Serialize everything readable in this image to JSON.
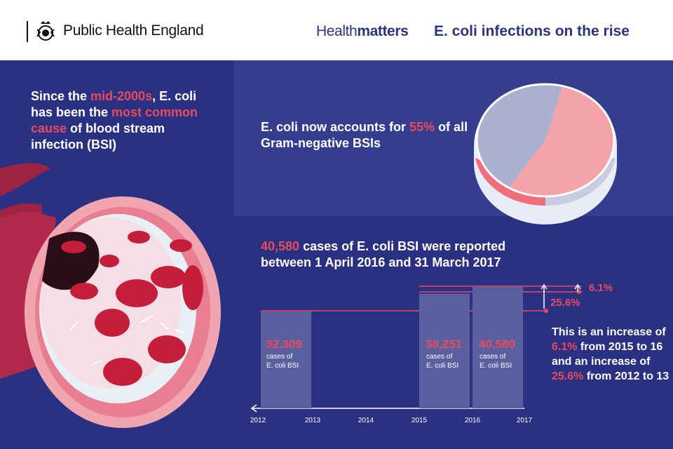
{
  "header": {
    "org_name": "Public Health England",
    "brand_light": "Health",
    "brand_bold": "matters",
    "title": "E. coli infections on the rise"
  },
  "left_panel": {
    "t1": "Since the ",
    "t2": "mid-2000s",
    "t3": ", E. coli has been the ",
    "t4": "most common cause",
    "t5": " of blood stream infection (BSI)"
  },
  "top_panel": {
    "t1": "E. coli now accounts for ",
    "t2": "55%",
    "t3": " of all Gram-negative BSIs"
  },
  "mid_panel": {
    "t1": "40,580",
    "t2": " cases of E. coli BSI were reported between 1 April 2016 and 31 March 2017"
  },
  "right_panel": {
    "t1": "This is an increase of ",
    "t2": "6.1%",
    "t3": " from 2015 to 16 and an increase of ",
    "t4": "25.6%",
    "t5": " from 2012 to 13"
  },
  "chart_data": [
    {
      "type": "pie",
      "slices": [
        {
          "label": "E. coli",
          "value": 55,
          "color": "#f4a3a8"
        },
        {
          "label": "Other Gram-negative",
          "value": 45,
          "color": "#aab0d0"
        }
      ]
    },
    {
      "type": "bar",
      "x_ticks": [
        "2012",
        "2013",
        "2014",
        "2015",
        "2016",
        "2017"
      ],
      "bars": [
        {
          "period": "2012 to 13",
          "value": 32309,
          "label": "32,309",
          "sub1": "cases of",
          "sub2": "E. coli BSI"
        },
        {
          "period": "2015 to 16",
          "value": 38251,
          "label": "38,251",
          "sub1": "cases of",
          "sub2": "E. coli BSI"
        },
        {
          "period": "2016 to 17",
          "value": 40580,
          "label": "40,580",
          "sub1": "cases of",
          "sub2": "E. coli BSI"
        }
      ],
      "increases": [
        {
          "label": "6.1%",
          "from": "2015 to 16"
        },
        {
          "label": "25.6%",
          "from": "2012 to 13"
        }
      ],
      "colors": {
        "accent": "#e94a5c",
        "bar": "#5a609f",
        "line": "#e94a5c"
      }
    }
  ]
}
